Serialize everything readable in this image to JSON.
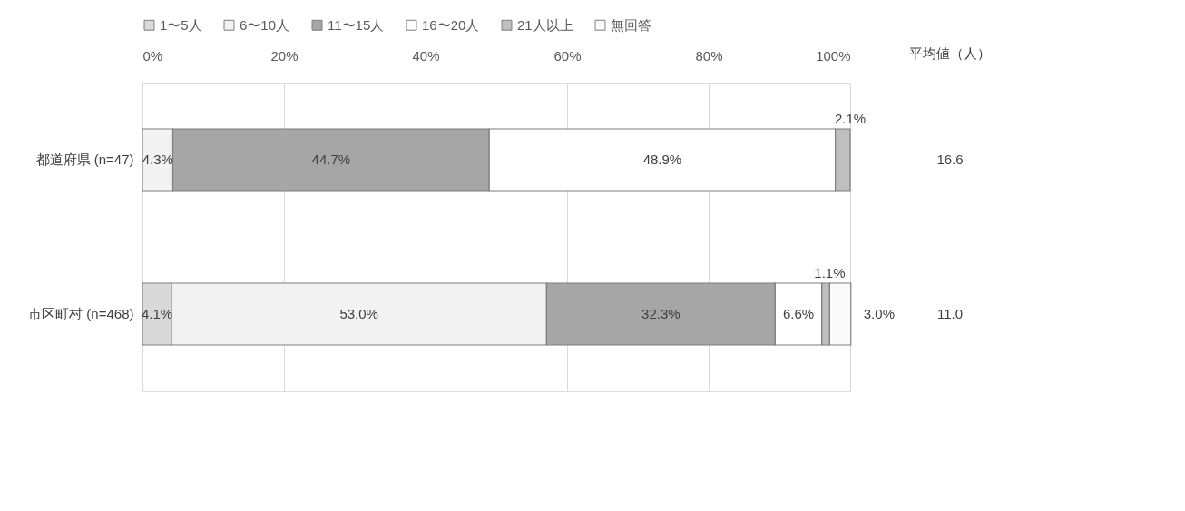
{
  "chart_data": {
    "type": "bar",
    "orientation": "horizontal",
    "stacked": true,
    "categories": [
      "都道府県 (n=47)",
      "市区町村 (n=468)"
    ],
    "series": [
      {
        "name": "1〜5人",
        "color": "#d9d9d9",
        "values": [
          0,
          4.1
        ],
        "value_labels": [
          null,
          "4.1%"
        ]
      },
      {
        "name": "6〜10人",
        "color": "#f2f2f2",
        "values": [
          4.3,
          53.0
        ],
        "value_labels": [
          "4.3%",
          "53.0%"
        ]
      },
      {
        "name": "11〜15人",
        "color": "#a6a6a6",
        "values": [
          44.7,
          32.3
        ],
        "value_labels": [
          "44.7%",
          "32.3%"
        ]
      },
      {
        "name": "16〜20人",
        "color": "#ffffff",
        "values": [
          48.9,
          6.6
        ],
        "value_labels": [
          "48.9%",
          "6.6%"
        ]
      },
      {
        "name": "21人以上",
        "color": "#bfbfbf",
        "values": [
          2.1,
          1.1
        ],
        "value_labels": [
          "2.1%",
          "1.1%"
        ]
      },
      {
        "name": "無回答",
        "color": "#fafafa",
        "values": [
          0,
          3.0
        ],
        "value_labels": [
          null,
          "3.0%"
        ]
      }
    ],
    "xlim": [
      0,
      100
    ],
    "xticks": [
      {
        "value": 0,
        "label": "0%"
      },
      {
        "value": 20,
        "label": "20%"
      },
      {
        "value": 40,
        "label": "40%"
      },
      {
        "value": 60,
        "label": "60%"
      },
      {
        "value": 80,
        "label": "80%"
      },
      {
        "value": 100,
        "label": "100%"
      }
    ],
    "grid": "x",
    "legend": "top",
    "annotations": [
      "平均値（人）",
      "16.6",
      "11.0"
    ]
  }
}
